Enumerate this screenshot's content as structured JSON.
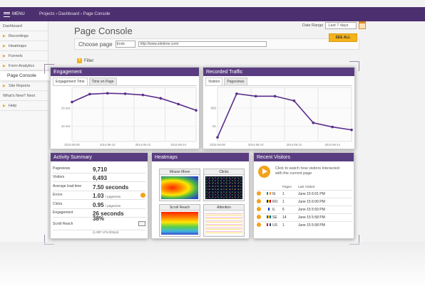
{
  "topbar": {
    "menu_label": "MENU",
    "breadcrumb": "Projects › Dashboard › Page Console"
  },
  "sidebar": {
    "items": [
      {
        "label": "Dashboard",
        "arrow": false
      },
      {
        "label": "Recordings",
        "arrow": true
      },
      {
        "label": "Heatmaps",
        "arrow": true
      },
      {
        "label": "Funnels",
        "arrow": true
      },
      {
        "label": "Form Analytics",
        "arrow": true
      },
      {
        "label": "Page Console",
        "arrow": false,
        "active": true
      },
      {
        "label": "Site Reports",
        "arrow": true
      },
      {
        "label": "What's New? Next",
        "arrow": false
      },
      {
        "label": "Help",
        "arrow": true
      }
    ]
  },
  "header": {
    "title": "Page Console",
    "date_range_label": "Date Range",
    "date_range_value": "Last 7 days",
    "choose_page_label": "Choose page",
    "page_select_value": "Ends",
    "url_value": "http://www.sitetime.com/",
    "see_all_label": "SEE ALL",
    "filter_label": "Filter",
    "filter_icon": "plus-icon"
  },
  "engagement": {
    "title": "Engagement",
    "tabs": [
      "Engagement Time",
      "Time on Page"
    ]
  },
  "traffic": {
    "title": "Recorded Traffic",
    "tabs": [
      "Visitors",
      "Pageviews"
    ]
  },
  "chart_data": [
    {
      "type": "line",
      "x": [
        "2014-06-08",
        "2014-06-09",
        "2014-06-10",
        "2014-06-11",
        "2014-06-12",
        "2014-06-13",
        "2014-06-14",
        "2014-06-15"
      ],
      "tick_labels": [
        "2014-06-08",
        "2014-06-10",
        "2014-06-12",
        "2014-06-14"
      ],
      "y_ticks": [
        "10 sec",
        "15 sec"
      ],
      "series": [
        {
          "values": [
            17.5,
            19.4,
            19.6,
            19.5,
            19.2,
            18.4,
            17.0,
            15.5
          ]
        }
      ],
      "ylim": [
        8,
        21
      ],
      "color": "#5a2d8c"
    },
    {
      "type": "line",
      "x": [
        "2014-06-08",
        "2014-06-09",
        "2014-06-10",
        "2014-06-11",
        "2014-06-12",
        "2014-06-13",
        "2014-06-14",
        "2014-06-15"
      ],
      "tick_labels": [
        "2014-06-08",
        "2014-06-10",
        "2014-06-12",
        "2014-06-14"
      ],
      "y_ticks": [
        "1K",
        "500"
      ],
      "series": [
        {
          "values": [
            300,
            1350,
            1290,
            1290,
            1180,
            650,
            550,
            480
          ]
        }
      ],
      "ylim": [
        200,
        1500
      ],
      "color": "#5a2d8c"
    }
  ],
  "activity": {
    "title": "Activity Summary",
    "rows": [
      {
        "label": "Pageviews",
        "value": "9,710",
        "sub": "",
        "icon": ""
      },
      {
        "label": "Visitors",
        "value": "6,493",
        "sub": "",
        "icon": ""
      },
      {
        "label": "Average load time",
        "value": "7.50 seconds",
        "sub": "",
        "icon": ""
      },
      {
        "label": "Errors",
        "value": "1.03",
        "sub": "/ pageview",
        "icon": "play"
      },
      {
        "label": "Clicks",
        "value": "0.95",
        "sub": "/ pageview",
        "icon": ""
      },
      {
        "label": "Engagement",
        "value": "26 seconds",
        "sub": "",
        "icon": ""
      },
      {
        "label": "Scroll Reach",
        "value": "38%",
        "sub": "(1,907 of 5,031px)",
        "icon": "chart"
      }
    ]
  },
  "heatmaps": {
    "title": "Heatmaps",
    "cards": [
      "Mouse Move",
      "Clicks",
      "Scroll Reach",
      "Attention"
    ]
  },
  "visitors": {
    "title": "Recent Visitors",
    "message": "Click to watch how visitors interacted with the current page",
    "columns": [
      "Pages",
      "Last Visited"
    ],
    "rows": [
      {
        "country": "IE",
        "pages": "1",
        "last": "June 15 6:01 PM",
        "flag": [
          "#169b62",
          "#ffffff",
          "#ff883e"
        ]
      },
      {
        "country": "RO",
        "pages": "1",
        "last": "June 15 6:00 PM",
        "flag": [
          "#002b7f",
          "#fcd116",
          "#ce1126"
        ]
      },
      {
        "country": "IL",
        "pages": "5",
        "last": "June 15 5:59 PM",
        "flag": [
          "#ffffff",
          "#0038b8",
          "#ffffff"
        ]
      },
      {
        "country": "SE",
        "pages": "14",
        "last": "June 15 5:58 PM",
        "flag": [
          "#006aa7",
          "#fecc00",
          "#006aa7"
        ]
      },
      {
        "country": "US",
        "pages": "1",
        "last": "June 15 5:58 PM",
        "flag": [
          "#b22234",
          "#ffffff",
          "#3c3b6e"
        ]
      }
    ]
  }
}
